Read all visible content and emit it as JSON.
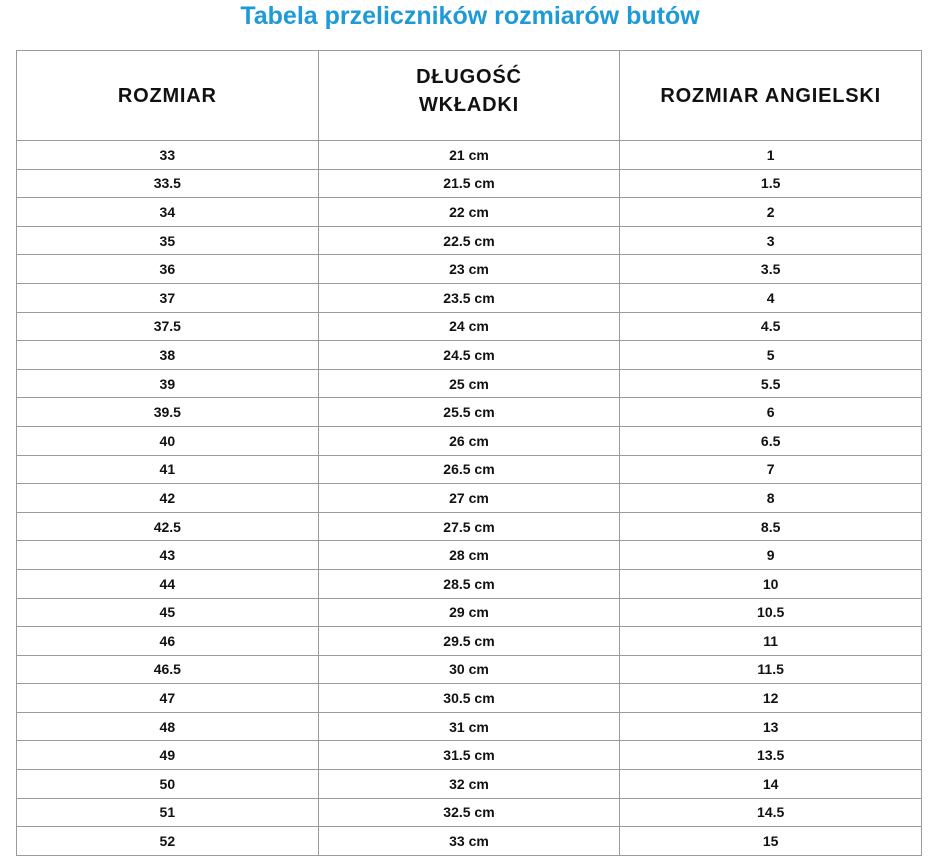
{
  "title": "Tabela przeliczników rozmiarów butów",
  "headers": [
    "ROZMIAR",
    "DŁUGOŚĆ WKŁADKI",
    "ROZMIAR ANGIELSKI"
  ],
  "rows": [
    [
      "33",
      "21 cm",
      "1"
    ],
    [
      "33.5",
      "21.5 cm",
      "1.5"
    ],
    [
      "34",
      "22 cm",
      "2"
    ],
    [
      "35",
      "22.5 cm",
      "3"
    ],
    [
      "36",
      "23 cm",
      "3.5"
    ],
    [
      "37",
      "23.5 cm",
      "4"
    ],
    [
      "37.5",
      "24 cm",
      "4.5"
    ],
    [
      "38",
      "24.5 cm",
      "5"
    ],
    [
      "39",
      "25 cm",
      "5.5"
    ],
    [
      "39.5",
      "25.5 cm",
      "6"
    ],
    [
      "40",
      "26 cm",
      "6.5"
    ],
    [
      "41",
      "26.5 cm",
      "7"
    ],
    [
      "42",
      "27 cm",
      "8"
    ],
    [
      "42.5",
      "27.5 cm",
      "8.5"
    ],
    [
      "43",
      "28 cm",
      "9"
    ],
    [
      "44",
      "28.5 cm",
      "10"
    ],
    [
      "45",
      "29 cm",
      "10.5"
    ],
    [
      "46",
      "29.5 cm",
      "11"
    ],
    [
      "46.5",
      "30 cm",
      "11.5"
    ],
    [
      "47",
      "30.5 cm",
      "12"
    ],
    [
      "48",
      "31 cm",
      "13"
    ],
    [
      "49",
      "31.5 cm",
      "13.5"
    ],
    [
      "50",
      "32 cm",
      "14"
    ],
    [
      "51",
      "32.5 cm",
      "14.5"
    ],
    [
      "52",
      "33 cm",
      "15"
    ]
  ],
  "colors": {
    "title": "#1e9bd7",
    "border": "#9a9a9a"
  }
}
